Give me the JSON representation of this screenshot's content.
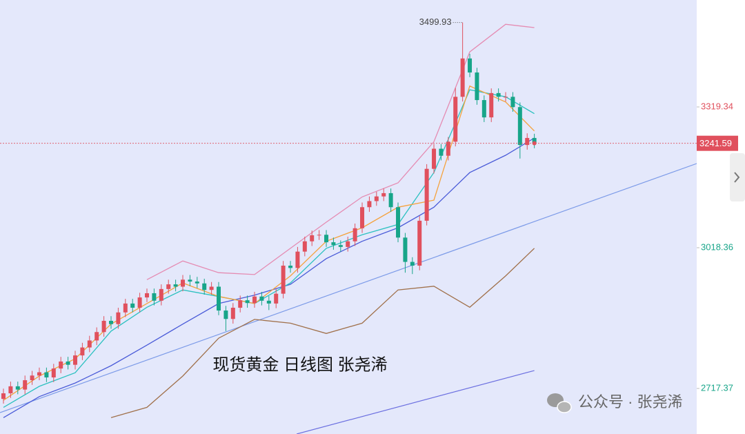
{
  "chart_data": {
    "type": "candlestick",
    "title": "现货黄金 日线图 张尧浠",
    "open": [
      2695,
      2707,
      2722,
      2715,
      2735,
      2745,
      2752,
      2741,
      2760,
      2775,
      2768,
      2788,
      2805,
      2820,
      2838,
      2862,
      2855,
      2880,
      2899,
      2890,
      2912,
      2921,
      2905,
      2930,
      2940,
      2935,
      2950,
      2946,
      2942,
      2928,
      2935,
      2884,
      2866,
      2890,
      2906,
      2900,
      2914,
      2905,
      2899,
      2920,
      2980,
      2975,
      3010,
      3032,
      3045,
      3046,
      3030,
      3024,
      3020,
      3032,
      3060,
      3105,
      3118,
      3128,
      3135,
      3105,
      3040,
      2988,
      2980,
      3076,
      3187,
      3230,
      3215,
      3245,
      3341,
      3423,
      3393,
      3334,
      3297,
      3349,
      3341,
      3341,
      3319,
      3238,
      3253
    ],
    "high": [
      2717,
      2732,
      2732,
      2745,
      2755,
      2762,
      2762,
      2770,
      2785,
      2785,
      2798,
      2815,
      2830,
      2848,
      2872,
      2872,
      2890,
      2909,
      2909,
      2922,
      2931,
      2931,
      2940,
      2950,
      2950,
      2960,
      2960,
      2956,
      2952,
      2945,
      2945,
      2894,
      2900,
      2916,
      2916,
      2924,
      2924,
      2915,
      2930,
      2990,
      2990,
      3020,
      3042,
      3055,
      3056,
      3056,
      3040,
      3034,
      3042,
      3070,
      3115,
      3128,
      3138,
      3145,
      3145,
      3115,
      3050,
      2998,
      3086,
      3197,
      3240,
      3240,
      3255,
      3360,
      3499.93,
      3433,
      3403,
      3344,
      3359,
      3359,
      3351,
      3351,
      3329,
      3263,
      3262
    ],
    "low": [
      2685,
      2697,
      2705,
      2705,
      2725,
      2735,
      2731,
      2731,
      2750,
      2758,
      2758,
      2778,
      2795,
      2810,
      2828,
      2845,
      2845,
      2870,
      2880,
      2880,
      2902,
      2895,
      2895,
      2920,
      2925,
      2925,
      2936,
      2932,
      2918,
      2918,
      2874,
      2840,
      2856,
      2880,
      2890,
      2890,
      2895,
      2885,
      2889,
      2910,
      2965,
      2965,
      3000,
      3022,
      3035,
      3020,
      3014,
      3010,
      3010,
      3022,
      3050,
      3095,
      3108,
      3118,
      3095,
      3030,
      2965,
      2962,
      2970,
      3066,
      3177,
      3205,
      3205,
      3235,
      3331,
      3383,
      3324,
      3287,
      3287,
      3331,
      3331,
      3309,
      3209,
      3228,
      3231
    ],
    "close": [
      2707,
      2722,
      2715,
      2735,
      2745,
      2752,
      2741,
      2760,
      2775,
      2768,
      2788,
      2805,
      2820,
      2838,
      2862,
      2855,
      2880,
      2899,
      2890,
      2912,
      2921,
      2905,
      2930,
      2940,
      2935,
      2950,
      2946,
      2942,
      2928,
      2935,
      2884,
      2866,
      2890,
      2906,
      2900,
      2914,
      2905,
      2899,
      2920,
      2980,
      2975,
      3010,
      3032,
      3045,
      3046,
      3030,
      3024,
      3020,
      3032,
      3060,
      3105,
      3118,
      3128,
      3135,
      3105,
      3040,
      2988,
      2980,
      3076,
      3187,
      3230,
      3215,
      3245,
      3341,
      3423,
      3393,
      3334,
      3297,
      3349,
      3341,
      3341,
      3319,
      3238,
      3253,
      3241.59
    ],
    "up_color": "#e0505d",
    "down_color": "#17a589",
    "xlim": [
      -0.48,
      96.63
    ],
    "ylim": [
      2620,
      3548
    ],
    "yticks": [
      3319.34,
      3018.36,
      2717.37
    ],
    "ytick_colors": [
      "#e0505d",
      "#17a589",
      "#17a589"
    ],
    "last_price_color": "#e0505d",
    "peak_index": 64,
    "overlay_x": [
      0,
      5,
      10,
      15,
      20,
      25,
      30,
      35,
      40,
      45,
      50,
      55,
      60,
      65,
      70,
      74
    ],
    "overlays": [
      {
        "color": "#e58bb2",
        "values": [
          null,
          null,
          null,
          null,
          2950,
          2990,
          2965,
          2961,
          3017,
          3073,
          3127,
          3157,
          3245,
          3437,
          3496,
          3489
        ]
      },
      {
        "color": "#a0704a",
        "values": [
          null,
          null,
          null,
          2655,
          2677,
          2744,
          2825,
          2865,
          2857,
          2835,
          2857,
          2928,
          2936,
          2891,
          2958,
          3017
        ]
      },
      {
        "color": "#4a5bd8",
        "values": [
          2655,
          2700,
          2729,
          2766,
          2810,
          2855,
          2899,
          2917,
          2940,
          2995,
          3032,
          3061,
          3105,
          3179,
          3216,
          3253
        ]
      },
      {
        "color": "#2cc1c0",
        "values": [
          2677,
          2722,
          2751,
          2840,
          2891,
          2928,
          2914,
          2899,
          2943,
          3017,
          3046,
          3068,
          3179,
          3356,
          3341,
          3305
        ]
      },
      {
        "color": "#f5a23c",
        "values": [
          2692,
          2744,
          2781,
          2855,
          2899,
          2943,
          2914,
          2899,
          2958,
          3032,
          3061,
          3105,
          3120,
          3364,
          3330,
          3268
        ]
      }
    ],
    "trendlines": [
      {
        "color": "#7b9ae8",
        "x": [
          -0.48,
          96.63
        ],
        "values": [
          2665.7,
          3198.3
        ]
      },
      {
        "color": "#6b6fe0",
        "x": [
          40.87,
          74
        ],
        "values": [
          2620,
          2755.7
        ]
      }
    ]
  },
  "watermark": "公众号 · 张尧浠"
}
